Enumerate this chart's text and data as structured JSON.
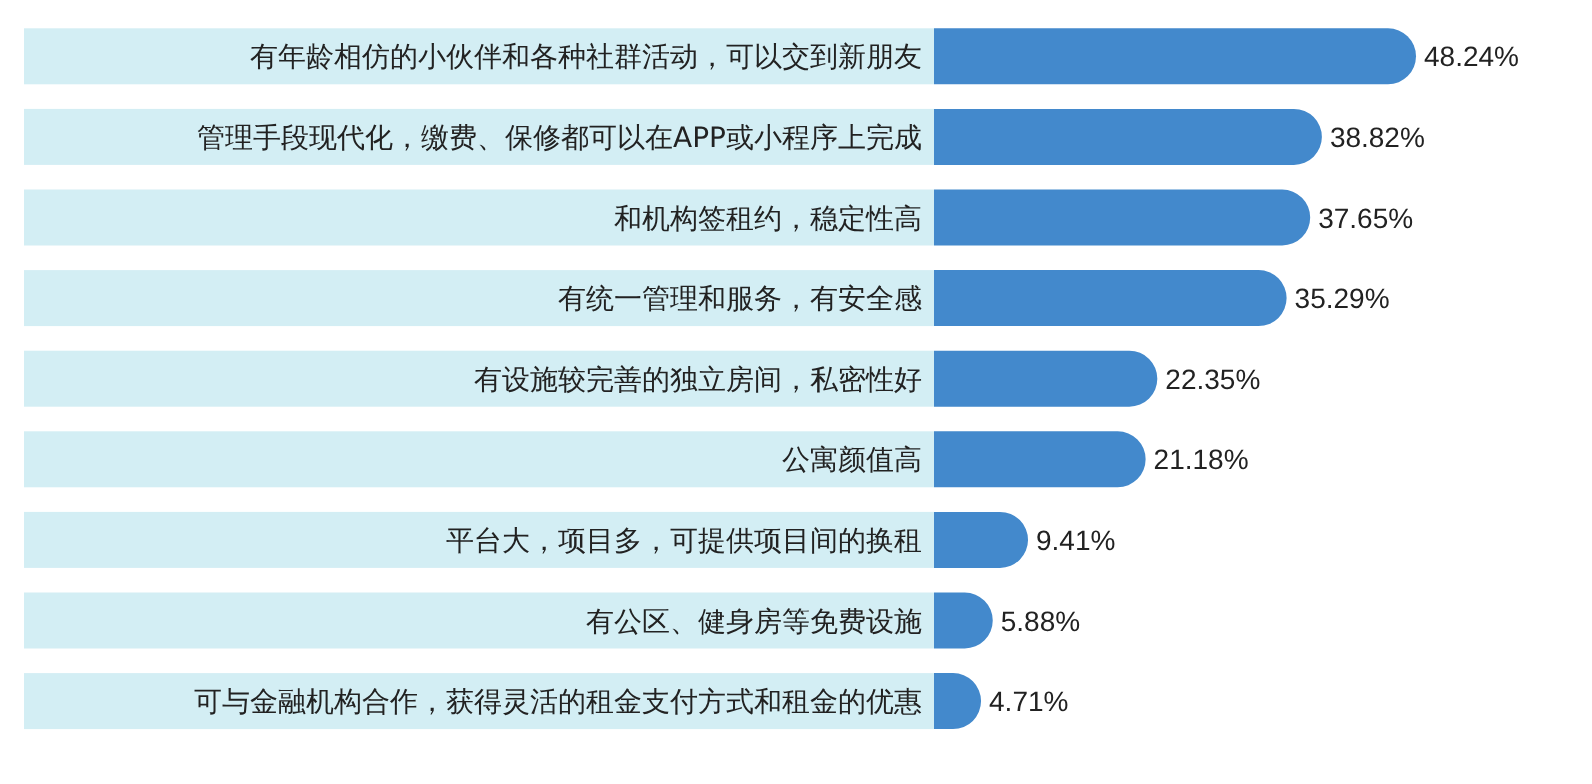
{
  "chart_data": {
    "type": "bar",
    "orientation": "horizontal",
    "categories": [
      "有年龄相仿的小伙伴和各种社群活动，可以交到新朋友",
      "管理手段现代化，缴费、保修都可以在APP或小程序上完成",
      "和机构签租约，稳定性高",
      "有统一管理和服务，有安全感",
      "有设施较完善的独立房间，私密性好",
      "公寓颜值高",
      "平台大，项目多，可提供项目间的换租",
      "有公区、健身房等免费设施",
      "可与金融机构合作，获得灵活的租金支付方式和租金的优惠"
    ],
    "values": [
      48.24,
      38.82,
      37.65,
      35.29,
      22.35,
      21.18,
      9.41,
      5.88,
      4.71
    ],
    "value_labels": [
      "48.24%",
      "38.82%",
      "37.65%",
      "35.29%",
      "22.35%",
      "21.18%",
      "9.41%",
      "5.88%",
      "4.71%"
    ],
    "color": "#4389cc"
  }
}
